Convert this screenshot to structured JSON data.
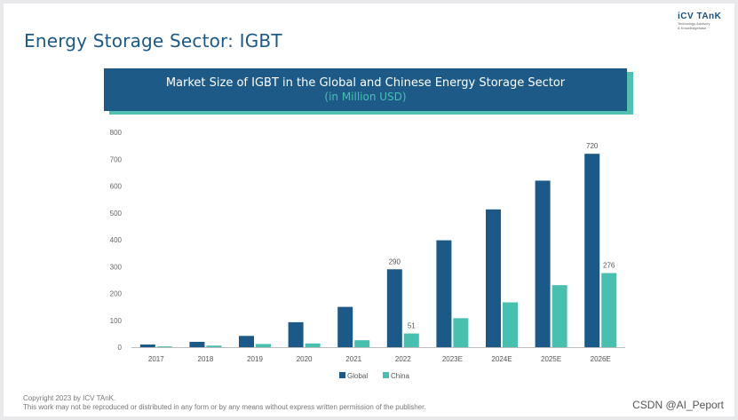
{
  "page": {
    "title": "Energy Storage Sector: IGBT",
    "logo_main": "iCV TAnK",
    "logo_sub1": "Technology Advisory",
    "logo_sub2": "& Knowledgebase",
    "footer_line1": "Copyright  2023 by ICV TAnK.",
    "footer_line2": "This work may not be reproduced or distributed in any form or by any means without express written permission of the publisher.",
    "watermark": "CSDN @AI_Peport"
  },
  "chart_data": {
    "type": "bar",
    "title": "Market Size of IGBT in the Global and Chinese Energy Storage Sector",
    "subtitle": "(in Million USD)",
    "categories": [
      "2017",
      "2018",
      "2019",
      "2020",
      "2021",
      "2022",
      "2023E",
      "2024E",
      "2025E",
      "2026E"
    ],
    "series": [
      {
        "name": "Global",
        "color": "#1b5a88",
        "values": [
          10,
          20,
          42,
          93,
          150,
          290,
          398,
          513,
          620,
          720
        ]
      },
      {
        "name": "China",
        "color": "#48c0b0",
        "values": [
          3,
          6,
          12,
          14,
          26,
          51,
          108,
          167,
          231,
          276
        ]
      }
    ],
    "data_labels": [
      {
        "series": "Global",
        "category": "2022",
        "text": "290"
      },
      {
        "series": "China",
        "category": "2022",
        "text": "51"
      },
      {
        "series": "Global",
        "category": "2026E",
        "text": "720"
      },
      {
        "series": "China",
        "category": "2026E",
        "text": "276"
      }
    ],
    "yticks": [
      "0",
      "100",
      "200",
      "300",
      "400",
      "500",
      "600",
      "700",
      "800"
    ],
    "ylim": [
      0,
      800
    ],
    "grid": false,
    "legend_position": "bottom"
  }
}
